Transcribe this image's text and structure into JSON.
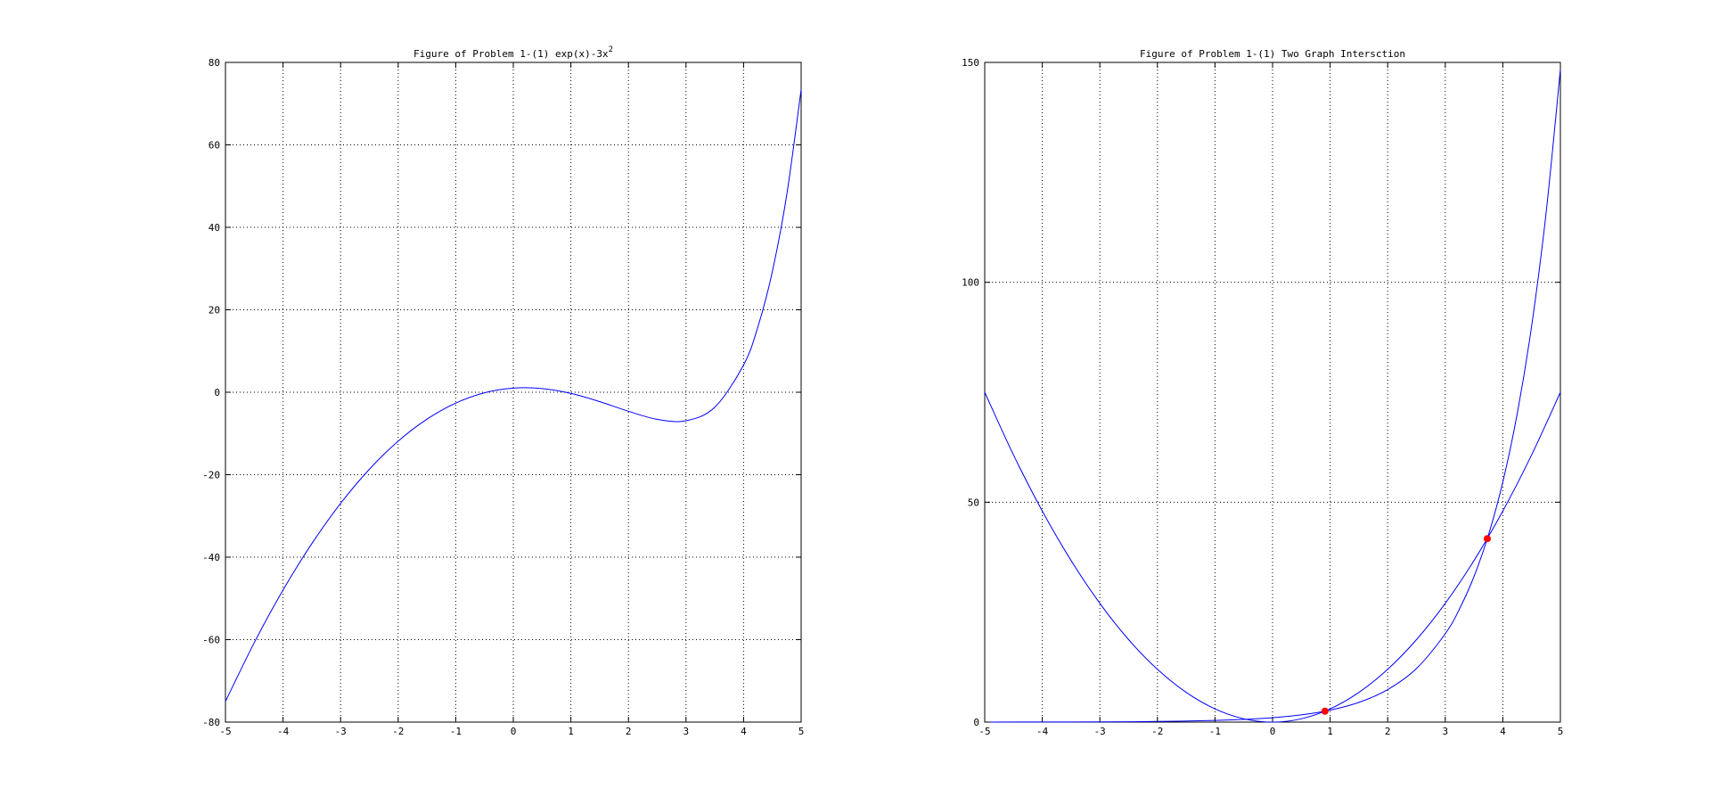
{
  "chart_data": [
    {
      "type": "line",
      "title": "Figure of Problem 1-(1) exp(x)-3x",
      "title_superscript": "2",
      "xlabel": "",
      "ylabel": "",
      "xlim": [
        -5,
        5
      ],
      "ylim": [
        -80,
        80
      ],
      "xticks": [
        -5,
        -4,
        -3,
        -2,
        -1,
        0,
        1,
        2,
        3,
        4,
        5
      ],
      "yticks": [
        -80,
        -60,
        -40,
        -20,
        0,
        20,
        40,
        60,
        80
      ],
      "grid": true,
      "series": [
        {
          "color": "#0000ff",
          "x": [
            -5,
            -4.5,
            -4,
            -3.5,
            -3,
            -2.5,
            -2,
            -1.5,
            -1,
            -0.5,
            0,
            0.5,
            1,
            1.5,
            2,
            2.5,
            3,
            3.5,
            4,
            4.25,
            4.5,
            4.75,
            5
          ],
          "y": [
            -74.99,
            -60.74,
            -47.98,
            -36.72,
            -26.95,
            -18.67,
            -11.86,
            -6.53,
            -2.63,
            -0.14,
            1.0,
            0.9,
            -0.28,
            -2.27,
            -4.61,
            -6.57,
            -6.91,
            -3.63,
            6.6,
            15.92,
            29.27,
            47.89,
            73.41
          ]
        }
      ],
      "points": []
    },
    {
      "type": "line",
      "title": "Figure of Problem 1-(1) Two Graph Intersction",
      "title_superscript": "",
      "xlabel": "",
      "ylabel": "",
      "xlim": [
        -5,
        5
      ],
      "ylim": [
        0,
        150
      ],
      "xticks": [
        -5,
        -4,
        -3,
        -2,
        -1,
        0,
        1,
        2,
        3,
        4,
        5
      ],
      "yticks": [
        0,
        50,
        100,
        150
      ],
      "grid": true,
      "series": [
        {
          "color": "#0000ff",
          "x": [
            -5,
            -4.5,
            -4,
            -3.5,
            -3,
            -2.5,
            -2,
            -1.5,
            -1,
            -0.5,
            0,
            0.5,
            1,
            1.5,
            2,
            2.5,
            3,
            3.5,
            4,
            4.5,
            5
          ],
          "y": [
            75,
            60.75,
            48,
            36.75,
            27,
            18.75,
            12,
            6.75,
            3,
            0.75,
            0,
            0.75,
            3,
            6.75,
            12,
            18.75,
            27,
            36.75,
            48,
            60.75,
            75
          ]
        },
        {
          "color": "#0000ff",
          "x": [
            -5,
            -4,
            -3,
            -2,
            -1,
            -0.5,
            0,
            0.5,
            1,
            1.5,
            2,
            2.5,
            3,
            3.25,
            3.5,
            3.75,
            4,
            4.25,
            4.5,
            4.75,
            5
          ],
          "y": [
            0.01,
            0.02,
            0.05,
            0.14,
            0.37,
            0.61,
            1.0,
            1.65,
            2.72,
            4.48,
            7.39,
            12.18,
            20.09,
            25.79,
            33.12,
            42.52,
            54.6,
            70.11,
            90.02,
            115.58,
            148.41
          ]
        }
      ],
      "points": [
        {
          "x": 0.91,
          "y": 2.48,
          "color": "#ff0000"
        },
        {
          "x": 3.73,
          "y": 41.7,
          "color": "#ff0000"
        }
      ]
    }
  ]
}
